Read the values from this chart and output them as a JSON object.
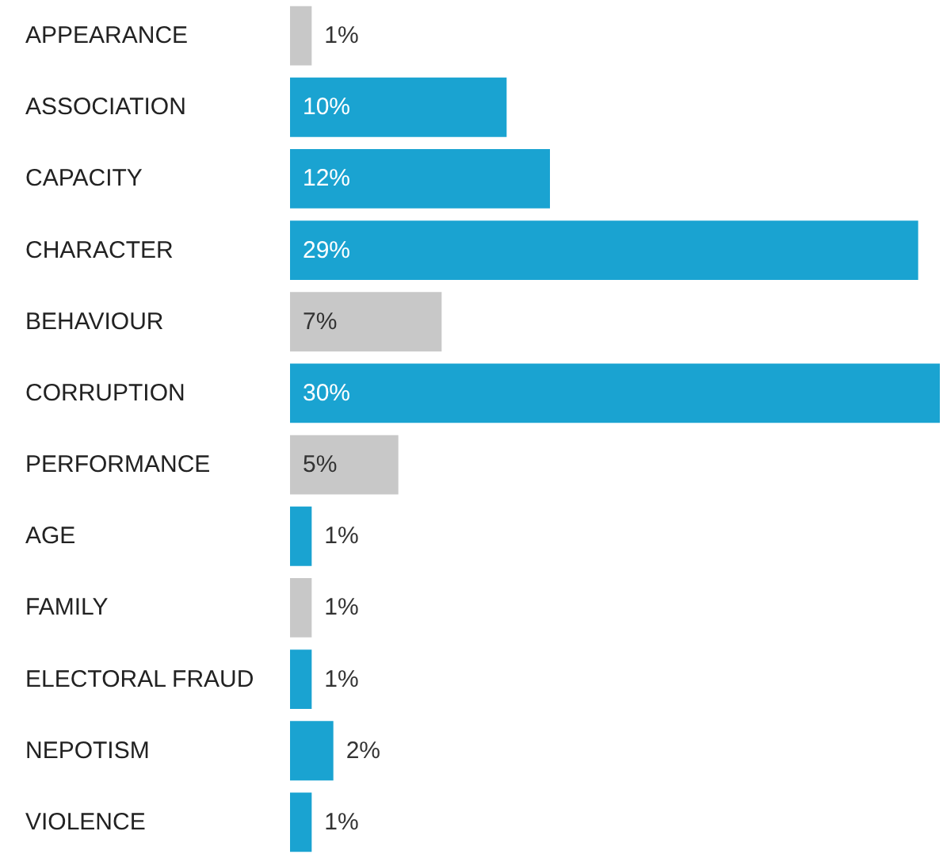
{
  "chart_data": {
    "type": "bar",
    "orientation": "horizontal",
    "categories": [
      "APPEARANCE",
      "ASSOCIATION",
      "CAPACITY",
      "CHARACTER",
      "BEHAVIOUR",
      "CORRUPTION",
      "PERFORMANCE",
      "AGE",
      "FAMILY",
      "ELECTORAL FRAUD",
      "NEPOTISM",
      "VIOLENCE"
    ],
    "values": [
      1,
      10,
      12,
      29,
      7,
      30,
      5,
      1,
      1,
      1,
      2,
      1
    ],
    "colors": [
      "#c8c8c8",
      "#1aa3d1",
      "#1aa3d1",
      "#1aa3d1",
      "#c8c8c8",
      "#1aa3d1",
      "#c8c8c8",
      "#1aa3d1",
      "#c8c8c8",
      "#1aa3d1",
      "#1aa3d1",
      "#1aa3d1"
    ],
    "value_labels": [
      "1%",
      "10%",
      "12%",
      "29%",
      "7%",
      "30%",
      "5%",
      "1%",
      "1%",
      "1%",
      "2%",
      "1%"
    ]
  }
}
